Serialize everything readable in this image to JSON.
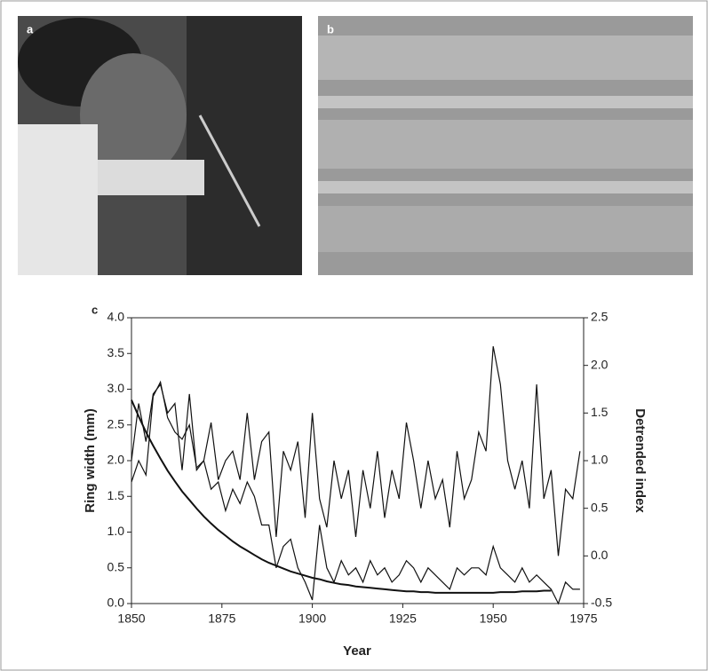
{
  "photo_panels": [
    {
      "label": "a"
    },
    {
      "label": "b"
    }
  ],
  "chart_data": {
    "type": "line",
    "panel_label": "c",
    "x_label": "Year",
    "y_label": "Ring width (mm)",
    "y2_label": "Detrended index",
    "x": [
      1850,
      1852,
      1854,
      1856,
      1858,
      1860,
      1862,
      1864,
      1866,
      1868,
      1870,
      1872,
      1874,
      1876,
      1878,
      1880,
      1882,
      1884,
      1886,
      1888,
      1890,
      1892,
      1894,
      1896,
      1898,
      1900,
      1902,
      1904,
      1906,
      1908,
      1910,
      1912,
      1914,
      1916,
      1918,
      1920,
      1922,
      1924,
      1926,
      1928,
      1930,
      1932,
      1934,
      1936,
      1938,
      1940,
      1942,
      1944,
      1946,
      1948,
      1950,
      1952,
      1954,
      1956,
      1958,
      1960,
      1962,
      1964,
      1966,
      1968,
      1970,
      1972,
      1974
    ],
    "series": [
      {
        "color": "#111",
        "values": [
          1.7,
          2.0,
          1.8,
          2.9,
          3.1,
          2.6,
          2.4,
          2.3,
          2.5,
          1.9,
          2.0,
          1.6,
          1.7,
          1.3,
          1.6,
          1.4,
          1.7,
          1.5,
          1.1,
          1.1,
          0.5,
          0.8,
          0.9,
          0.5,
          0.3,
          0.05,
          1.1,
          0.5,
          0.3,
          0.6,
          0.4,
          0.5,
          0.3,
          0.6,
          0.4,
          0.5,
          0.3,
          0.4,
          0.6,
          0.5,
          0.3,
          0.5,
          0.4,
          0.3,
          0.2,
          0.5,
          0.4,
          0.5,
          0.5,
          0.4,
          0.8,
          0.5,
          0.4,
          0.3,
          0.5,
          0.3,
          0.4,
          0.3,
          0.2,
          0.0,
          0.3,
          0.2,
          0.2
        ]
      },
      {
        "color": "#111",
        "axis": "y2",
        "values": [
          1.0,
          1.6,
          1.2,
          1.7,
          1.8,
          1.5,
          1.6,
          0.9,
          1.7,
          0.9,
          1.0,
          1.4,
          0.8,
          1.0,
          1.1,
          0.8,
          1.5,
          0.8,
          1.2,
          1.3,
          0.2,
          1.1,
          0.9,
          1.2,
          0.4,
          1.5,
          0.6,
          0.3,
          1.0,
          0.6,
          0.9,
          0.2,
          0.9,
          0.5,
          1.1,
          0.4,
          0.9,
          0.6,
          1.4,
          1.0,
          0.5,
          1.0,
          0.6,
          0.8,
          0.3,
          1.1,
          0.6,
          0.8,
          1.3,
          1.1,
          2.2,
          1.8,
          1.0,
          0.7,
          1.0,
          0.5,
          1.8,
          0.6,
          0.9,
          0.0,
          0.7,
          0.6,
          1.1
        ]
      },
      {
        "color": "#111",
        "values": [
          2.85,
          2.62,
          2.4,
          2.21,
          2.03,
          1.86,
          1.71,
          1.57,
          1.45,
          1.33,
          1.22,
          1.12,
          1.03,
          0.95,
          0.87,
          0.8,
          0.74,
          0.68,
          0.62,
          0.57,
          0.53,
          0.49,
          0.45,
          0.42,
          0.39,
          0.36,
          0.34,
          0.31,
          0.29,
          0.27,
          0.26,
          0.24,
          0.23,
          0.22,
          0.21,
          0.2,
          0.19,
          0.18,
          0.17,
          0.17,
          0.16,
          0.16,
          0.15,
          0.15,
          0.15,
          0.15,
          0.15,
          0.15,
          0.15,
          0.15,
          0.15,
          0.16,
          0.16,
          0.16,
          0.17,
          0.17,
          0.17,
          0.18,
          0.18,
          null,
          null,
          null,
          null
        ]
      }
    ],
    "xlim": [
      1850,
      1975
    ],
    "xticks": [
      1850,
      1875,
      1900,
      1925,
      1950,
      1975
    ],
    "ylim": [
      0,
      4
    ],
    "yticks": [
      {
        "value": 0,
        "label": "0.0"
      },
      0.5,
      {
        "value": 1,
        "label": "1.0"
      },
      1.5,
      {
        "value": 2,
        "label": "2.0"
      },
      2.5,
      {
        "value": 3,
        "label": "3.0"
      },
      3.5,
      {
        "value": 4,
        "label": "4.0"
      }
    ],
    "y2lim": [
      -0.5,
      2.5
    ],
    "y2ticks": [
      -0.5,
      {
        "value": 0,
        "label": "0.0"
      },
      0.5,
      {
        "value": 1,
        "label": "1.0"
      },
      1.5,
      {
        "value": 2,
        "label": "2.0"
      },
      2.5
    ]
  }
}
